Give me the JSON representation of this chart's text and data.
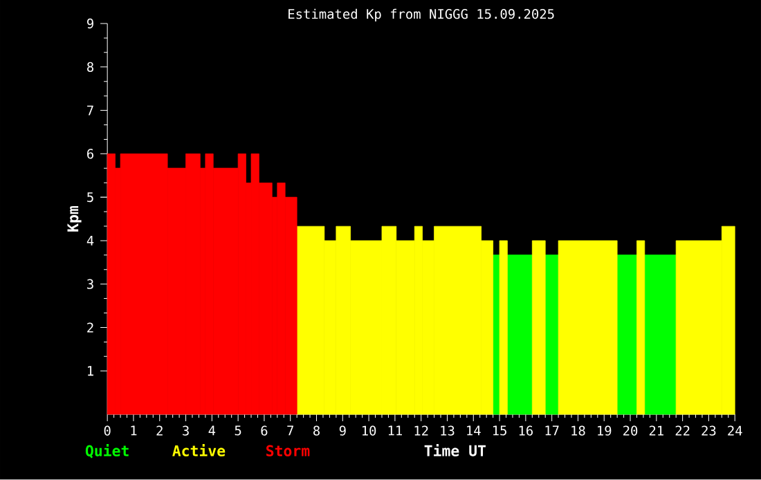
{
  "chart_data": {
    "type": "histogram",
    "title": "Estimated Kp from NIGGG 15.09.2025",
    "xlabel": "Time UT",
    "ylabel": "Kpm",
    "bins": [
      0,
      0.3,
      0.5,
      2.3,
      3.0,
      3.55,
      3.75,
      4.05,
      5.0,
      5.3,
      5.5,
      5.8,
      6.3,
      6.5,
      6.8,
      7.25,
      8.3,
      8.75,
      9.3,
      10.5,
      11.05,
      11.75,
      12.05,
      12.5,
      14.3,
      14.75,
      15.0,
      15.3,
      16.25,
      16.75,
      17.25,
      19.5,
      20.25,
      20.55,
      21.75,
      23.5,
      24
    ],
    "series": [
      {
        "name": "Quiet",
        "color": "#00ff00",
        "values": [
          null,
          null,
          null,
          null,
          null,
          null,
          null,
          null,
          null,
          null,
          null,
          null,
          null,
          null,
          null,
          null,
          null,
          null,
          null,
          null,
          null,
          null,
          null,
          null,
          null,
          3.67,
          null,
          3.67,
          null,
          3.67,
          null,
          3.67,
          null,
          3.67,
          null,
          null
        ]
      },
      {
        "name": "Active",
        "color": "#ffff00",
        "values": [
          null,
          null,
          null,
          null,
          null,
          null,
          null,
          null,
          null,
          null,
          null,
          null,
          null,
          null,
          null,
          4.33,
          4,
          4.33,
          4,
          4.33,
          4,
          4.33,
          4,
          4.33,
          4,
          null,
          4,
          null,
          4,
          null,
          4,
          null,
          4,
          null,
          4,
          4.33
        ]
      },
      {
        "name": "Storm",
        "color": "#ff0000",
        "values": [
          6,
          5.67,
          6,
          5.67,
          6,
          5.67,
          6,
          5.67,
          6,
          5.33,
          6,
          5.33,
          5,
          5.33,
          5,
          null,
          null,
          null,
          null,
          null,
          null,
          null,
          null,
          null,
          null,
          null,
          null,
          null,
          null,
          null,
          null,
          null,
          null,
          null,
          null,
          null
        ]
      }
    ],
    "xlim": [
      0,
      24
    ],
    "xticks": [
      0,
      1,
      2,
      3,
      4,
      5,
      6,
      7,
      8,
      9,
      10,
      11,
      12,
      13,
      14,
      15,
      16,
      17,
      18,
      19,
      20,
      21,
      22,
      23,
      24
    ],
    "ylim": [
      0,
      9
    ],
    "yticks": [
      1,
      2,
      3,
      4,
      5,
      6,
      7,
      8,
      9
    ],
    "grid": false,
    "legend": "bottom left"
  }
}
